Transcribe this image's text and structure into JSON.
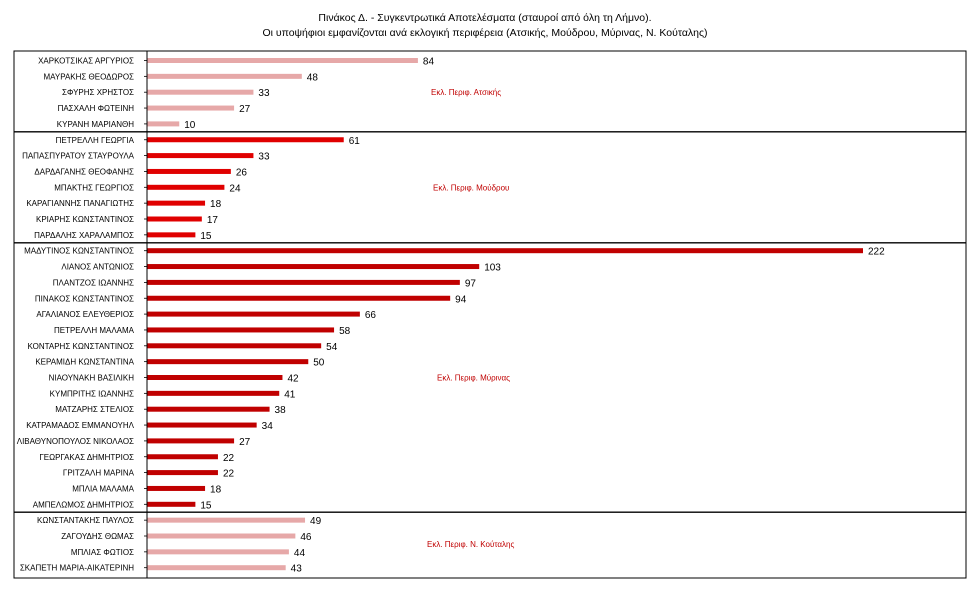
{
  "title": "Πινάκος Δ. - Συγκεντρωτικά Αποτελέσματα (σταυροί από όλη τη Λήμνο).",
  "subtitle": "Οι υποψήφιοι εμφανίζονται ανά εκλογική περιφέρεια (Ατσικής, Μούδρου, Μύρινας, Ν. Κούταλης)",
  "colors": {
    "light": "#e6a8a8",
    "red": "#e00000",
    "dark": "#c00000",
    "label": "#c00000",
    "frame": "#000000"
  },
  "chart_data": {
    "type": "bar",
    "orientation": "horizontal",
    "title": "Πινάκος Δ. - Συγκεντρωτικά Αποτελέσματα (σταυροί από όλη τη Λήμνο).",
    "subtitle": "Οι υποψήφιοι εμφανίζονται ανά εκλογική περιφέρεια (Ατσικής, Μούδρου, Μύρινας, Ν. Κούταλης)",
    "xlim": [
      0,
      222
    ],
    "groups": [
      {
        "label": "Εκλ. Περιφ. Ατσικής",
        "color": "light",
        "categories": [
          "ΧΑΡΚΟΤΣΙΚΑΣ  ΑΡΓΥΡΙΟΣ",
          "ΜΑΥΡΑΚΗΣ ΘΕΟΔΩΡΟΣ",
          "ΣΦΥΡΗΣ ΧΡΗΣΤΟΣ",
          "ΠΑΣΧΑΛΗ ΦΩΤΕΙΝΗ",
          "ΚΥΡΑΝΗ ΜΑΡΙΑΝΘΗ"
        ],
        "values": [
          84,
          48,
          33,
          27,
          10
        ]
      },
      {
        "label": "Εκλ. Περιφ.  Μούδρου",
        "color": "red",
        "categories": [
          "ΠΕΤΡΕΛΛΗ  ΓΕΩΡΓΙΑ",
          "ΠΑΠΑΣΠΥΡΑΤΟΥ  ΣΤΑΥΡΟΥΛΑ",
          "ΔΑΡΔΑΓΑΝΗΣ  ΘΕΟΦΑΝΗΣ",
          "ΜΠΑΚΤΗΣ  ΓΕΩΡΓΙΟΣ",
          "ΚΑΡΑΓΙΑΝΝΗΣ  ΠΑΝΑΓΙΩΤΗΣ",
          "ΚΡΙΑΡΗΣ  ΚΩΝΣΤΑΝΤΙΝΟΣ",
          "ΠΑΡΔΑΛΗΣ  ΧΑΡΑΛΑΜΠΟΣ"
        ],
        "values": [
          61,
          33,
          26,
          24,
          18,
          17,
          15
        ]
      },
      {
        "label": "Εκλ. Περιφ. Μύρινας",
        "color": "dark",
        "categories": [
          "ΜΑΔΥΤΙΝΟΣ  ΚΩΝΣΤΑΝΤΙΝΟΣ",
          "ΛΙΑΝΟΣ  ΑΝΤΩΝΙΟΣ",
          "ΠΛΑΝΤΖΟΣ  ΙΩΑΝΝΗΣ",
          "ΠΙΝΑΚΟΣ ΚΩΝΣΤΑΝΤΙΝΟΣ",
          "ΑΓΑΛΙΑΝΟΣ  ΕΛΕΥΘΕΡΙΟΣ",
          "ΠΕΤΡΕΛΛΗ  ΜΑΛΑΜΑ",
          "ΚΟΝΤΑΡΗΣ  ΚΩΝΣΤΑΝΤΙΝΟΣ",
          "ΚΕΡΑΜΙΔΗ  ΚΩΝΣΤΑΝΤΙΝΑ",
          "ΝΙΑΟΥΝΑΚΗ  ΒΑΣΙΛΙΚΗ",
          "ΚΥΜΠΡΙΤΗΣ  ΙΩΑΝΝΗΣ",
          "ΜΑΤΖΑΡΗΣ  ΣΤΕΛΙΟΣ",
          "ΚΑΤΡΑΜΑΔΟΣ  ΕΜΜΑΝΟΥΗΛ",
          "ΛΙΒΑΘΥΝΟΠΟΥΛΟΣ  ΝΙΚΟΛΑΟΣ",
          "ΓΕΩΡΓΑΚΑΣ  ΔΗΜΗΤΡΙΟΣ",
          "ΓΡΙΤΖΑΛΗ  ΜΑΡΙΝΑ",
          "ΜΠΛΙΑ  ΜΑΛΑΜΑ",
          "ΑΜΠΕΛΩΜΟΣ  ΔΗΜΗΤΡΙΟΣ"
        ],
        "values": [
          222,
          103,
          97,
          94,
          66,
          58,
          54,
          50,
          42,
          41,
          38,
          34,
          27,
          22,
          22,
          18,
          15
        ]
      },
      {
        "label": "Εκλ. Περιφ. Ν. Κούταλης",
        "color": "light",
        "categories": [
          "ΚΩΝΣΤΑΝΤΑΚΗΣ  ΠΑΥΛΟΣ",
          "ΖΑΓΟΥΔΗΣ  ΘΩΜΑΣ",
          "ΜΠΛΙΑΣ  ΦΩΤΙΟΣ",
          "ΣΚΑΠΕΤΗ  ΜΑΡΙΑ-ΑΙΚΑΤΕΡΙΝΗ"
        ],
        "values": [
          49,
          46,
          44,
          43
        ]
      }
    ]
  }
}
